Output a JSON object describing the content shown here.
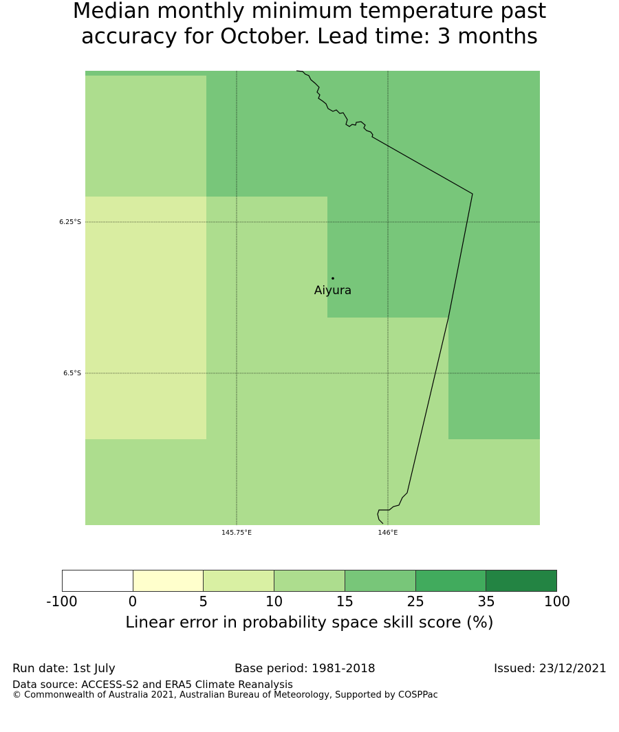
{
  "title": {
    "line1": "Median monthly minimum temperature past",
    "line2": "accuracy for October. Lead time: 3 months"
  },
  "map": {
    "lat_labels": [
      "6.25°S",
      "6.5°S"
    ],
    "lon_labels": [
      "145.75°E",
      "146°E"
    ],
    "location": {
      "name": "Aiyura",
      "lon": 145.9,
      "lat": -6.34
    },
    "grid_cells": [
      {
        "lon_from": 145.5,
        "lon_to": 145.7,
        "lat_from": -6.0,
        "lat_to": -6.2,
        "category": "10-15"
      },
      {
        "lon_from": 145.7,
        "lon_to": 145.9,
        "lat_from": -6.0,
        "lat_to": -6.2,
        "category": "15-25"
      },
      {
        "lon_from": 145.9,
        "lon_to": 146.1,
        "lat_from": -6.0,
        "lat_to": -6.2,
        "category": "15-25"
      },
      {
        "lon_from": 146.1,
        "lon_to": 146.3,
        "lat_from": -6.0,
        "lat_to": -6.2,
        "category": "15-25"
      },
      {
        "lon_from": 145.5,
        "lon_to": 145.7,
        "lat_from": -6.2,
        "lat_to": -6.4,
        "category": "5-10"
      },
      {
        "lon_from": 145.7,
        "lon_to": 145.9,
        "lat_from": -6.2,
        "lat_to": -6.4,
        "category": "10-15"
      },
      {
        "lon_from": 145.9,
        "lon_to": 146.1,
        "lat_from": -6.2,
        "lat_to": -6.4,
        "category": "15-25"
      },
      {
        "lon_from": 146.1,
        "lon_to": 146.3,
        "lat_from": -6.2,
        "lat_to": -6.4,
        "category": "15-25"
      },
      {
        "lon_from": 145.5,
        "lon_to": 145.7,
        "lat_from": -6.4,
        "lat_to": -6.6,
        "category": "5-10"
      },
      {
        "lon_from": 145.7,
        "lon_to": 145.9,
        "lat_from": -6.4,
        "lat_to": -6.6,
        "category": "10-15"
      },
      {
        "lon_from": 145.9,
        "lon_to": 146.1,
        "lat_from": -6.4,
        "lat_to": -6.6,
        "category": "10-15"
      },
      {
        "lon_from": 146.1,
        "lon_to": 146.3,
        "lat_from": -6.4,
        "lat_to": -6.6,
        "category": "15-25"
      },
      {
        "lon_from": 145.5,
        "lon_to": 145.7,
        "lat_from": -6.6,
        "lat_to": -6.8,
        "category": "10-15"
      },
      {
        "lon_from": 145.7,
        "lon_to": 145.9,
        "lat_from": -6.6,
        "lat_to": -6.8,
        "category": "10-15"
      },
      {
        "lon_from": 145.9,
        "lon_to": 146.1,
        "lat_from": -6.6,
        "lat_to": -6.8,
        "category": "10-15"
      },
      {
        "lon_from": 146.1,
        "lon_to": 146.3,
        "lat_from": -6.6,
        "lat_to": -6.8,
        "category": "10-15"
      }
    ]
  },
  "colorbar": {
    "colors": [
      "#ffffff",
      "#ffffcc",
      "#d9f0a3",
      "#addd8e",
      "#78c679",
      "#41ab5d",
      "#238443"
    ],
    "ticks": [
      "-100",
      "0",
      "5",
      "10",
      "15",
      "25",
      "35",
      "100"
    ],
    "label": "Linear error in probability space skill score (%)"
  },
  "footer": {
    "run_date": "Run date: 1st July",
    "base_period": "Base period: 1981-2018",
    "issued": "Issued: 23/12/2021",
    "data_source": "Data source: ACCESS-S2 and ERA5 Climate Reanalysis",
    "copyright": "© Commonwealth of Australia 2021, Australian Bureau of Meteorology, Supported by COSPPac"
  },
  "category_colors": {
    "5-10": "#d9eda1",
    "10-15": "#addd8e",
    "15-25": "#78c67a"
  }
}
